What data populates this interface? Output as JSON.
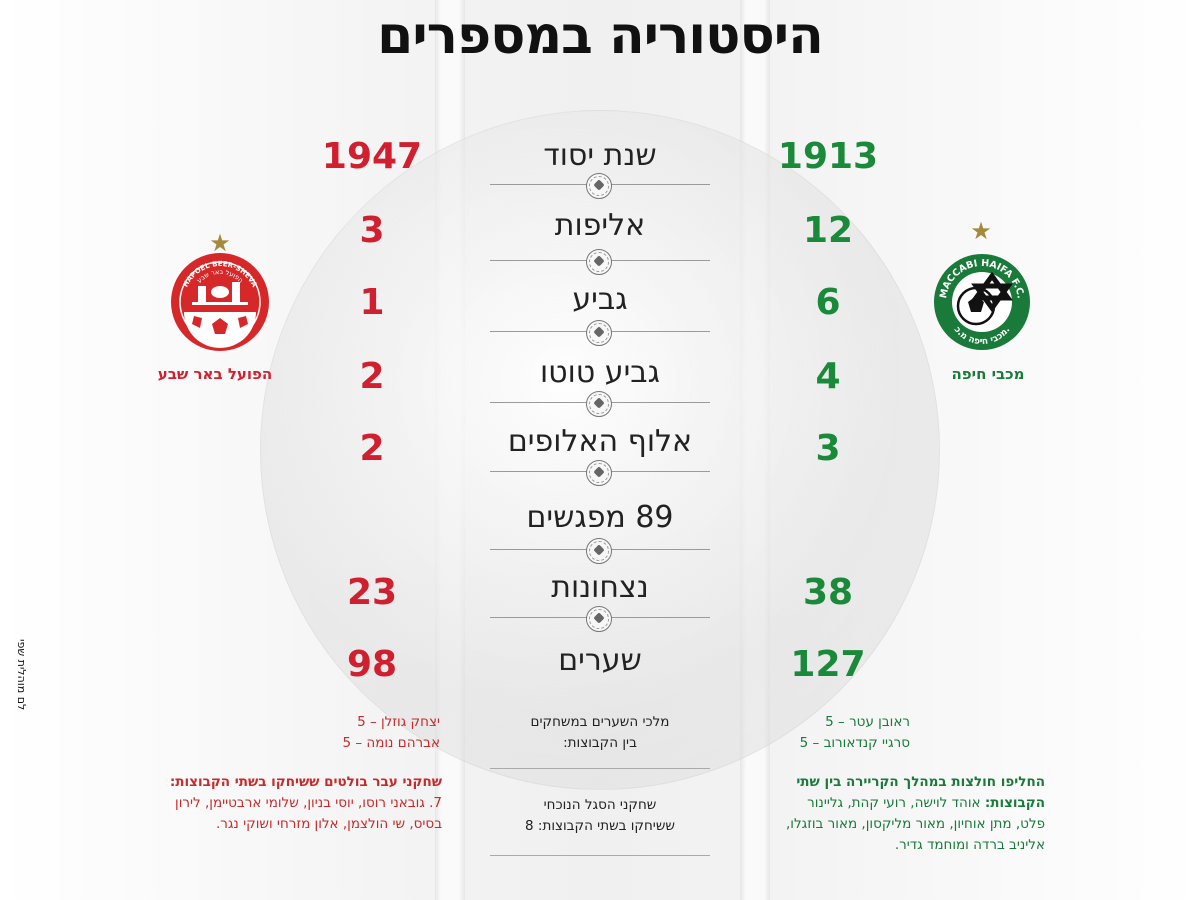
{
  "title": "היסטוריה במספרים",
  "teams": {
    "right": {
      "name": "מכבי חיפה",
      "logo_text": "MACCABI HAIFA F.C.",
      "logo_text_bottom": "מכבי חיפה מ.כ.",
      "color": "#1a8a3a"
    },
    "left": {
      "name": "הפועל באר שבע",
      "logo_text": "HAPOEL BEER-SHEVA",
      "logo_text_hebrew": "הפועל באר שבע",
      "color": "#d02030"
    }
  },
  "rows": [
    {
      "category": "שנת יסוד",
      "green": "1913",
      "red": "1947"
    },
    {
      "category": "אליפות",
      "green": "12",
      "red": "3"
    },
    {
      "category": "גביע",
      "green": "6",
      "red": "1"
    },
    {
      "category": "גביע טוטו",
      "green": "4",
      "red": "2"
    },
    {
      "category": "אלוף האלופים",
      "green": "3",
      "red": "2"
    },
    {
      "category": "89 מפגשים",
      "green": "",
      "red": ""
    },
    {
      "category": "נצחונות",
      "green": "38",
      "red": "23"
    },
    {
      "category": "שערים",
      "green": "127",
      "red": "98"
    }
  ],
  "scorers": {
    "label_line1": "מלכי השערים במשחקים",
    "label_line2": "בין הקבוצות:",
    "green": [
      "ראובן עטר – 5",
      "סרגיי קנדאורוב – 5"
    ],
    "red": [
      "יצחק גוזלן – 5",
      "אברהם נומה – 5"
    ]
  },
  "current_squad": {
    "line1": "שחקני הסגל הנוכחי",
    "line2": "ששיחקו בשתי הקבוצות: 8"
  },
  "green_note": {
    "bold": "החליפו חולצות במהלך הקריירה בין שתי הקבוצות:",
    "text": "אוהד לוישה, רועי קהת, גליינור פלט, מתן אוחיון, מאור מליקסון, מאור בוזגלו, אליניב ברדה ומוחמד גדיר."
  },
  "red_note": {
    "bold": "שחקני עבר בולטים ששיחקו בשתי הקבוצות:",
    "text": "7. גובאני רוסו, יוסי בניון, שלומי ארבטיימן, לירון בסיס, שי הולצמן, אלון מזרחי ושוקי נגר."
  },
  "credit": "לם מוהלית  שפי"
}
